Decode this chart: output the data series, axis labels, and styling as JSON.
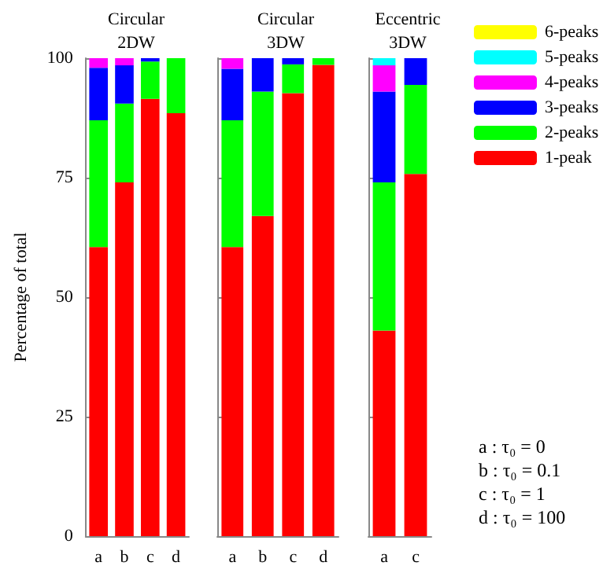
{
  "chart_data": [
    {
      "type": "bar",
      "title": "Circular\n2DW",
      "ylabel": "Percentage of total",
      "categories": [
        "a",
        "b",
        "c",
        "d"
      ],
      "stacked": true,
      "ylim": [
        0,
        100
      ],
      "yticks": [
        0,
        25,
        50,
        75,
        100
      ],
      "grid": false,
      "legend": false,
      "series": [
        {
          "color": "#ff0000",
          "values": [
            60.5,
            74,
            91.5,
            88.5
          ]
        },
        {
          "color": "#00ff00",
          "values": [
            26.5,
            16.5,
            7.8,
            11.5
          ]
        },
        {
          "color": "#0000ff",
          "values": [
            11,
            8,
            0.7,
            0
          ]
        },
        {
          "color": "#ff00ff",
          "values": [
            2,
            1.5,
            0,
            0
          ]
        },
        {
          "color": "#00ffff",
          "values": [
            0,
            0,
            0,
            0
          ]
        },
        {
          "color": "#ffff00",
          "values": [
            0,
            0,
            0,
            0
          ]
        }
      ]
    },
    {
      "type": "bar",
      "title": "Circular\n3DW",
      "categories": [
        "a",
        "b",
        "c",
        "d"
      ],
      "stacked": true,
      "ylim": [
        0,
        100
      ],
      "yticks": [
        0,
        25,
        50,
        75,
        100
      ],
      "grid": false,
      "legend": false,
      "tick_labels": "x",
      "series": [
        {
          "color": "#ff0000",
          "values": [
            60.5,
            67,
            92.7,
            98.6
          ]
        },
        {
          "color": "#00ff00",
          "values": [
            26.5,
            26,
            6,
            1.4
          ]
        },
        {
          "color": "#0000ff",
          "values": [
            10.8,
            7,
            1.3,
            0
          ]
        },
        {
          "color": "#ff00ff",
          "values": [
            2.2,
            0,
            0,
            0
          ]
        },
        {
          "color": "#00ffff",
          "values": [
            0,
            0,
            0,
            0
          ]
        },
        {
          "color": "#ffff00",
          "values": [
            0,
            0,
            0,
            0
          ]
        }
      ]
    },
    {
      "type": "bar",
      "title": "Eccentric\n3DW",
      "categories": [
        "a",
        "c"
      ],
      "stacked": true,
      "ylim": [
        0,
        100
      ],
      "yticks": [
        0,
        25,
        50,
        75,
        100
      ],
      "grid": false,
      "legend": "right",
      "tick_labels": "x",
      "annotations": [
        "a : τ₀ = 0",
        "b : τ₀ = 0.1",
        "c : τ₀ = 1",
        "d : τ₀ = 100"
      ],
      "series": [
        {
          "name": "1-peak",
          "color": "#ff0000",
          "values": [
            43,
            75.8
          ]
        },
        {
          "name": "2-peaks",
          "color": "#00ff00",
          "values": [
            31,
            18.6
          ]
        },
        {
          "name": "3-peaks",
          "color": "#0000ff",
          "values": [
            19,
            5.6
          ]
        },
        {
          "name": "4-peaks",
          "color": "#ff00ff",
          "values": [
            5.5,
            0
          ]
        },
        {
          "name": "5-peaks",
          "color": "#00ffff",
          "values": [
            1.5,
            0
          ]
        },
        {
          "name": "6-peaks",
          "color": "#ffff00",
          "values": [
            0,
            0
          ]
        }
      ]
    }
  ]
}
